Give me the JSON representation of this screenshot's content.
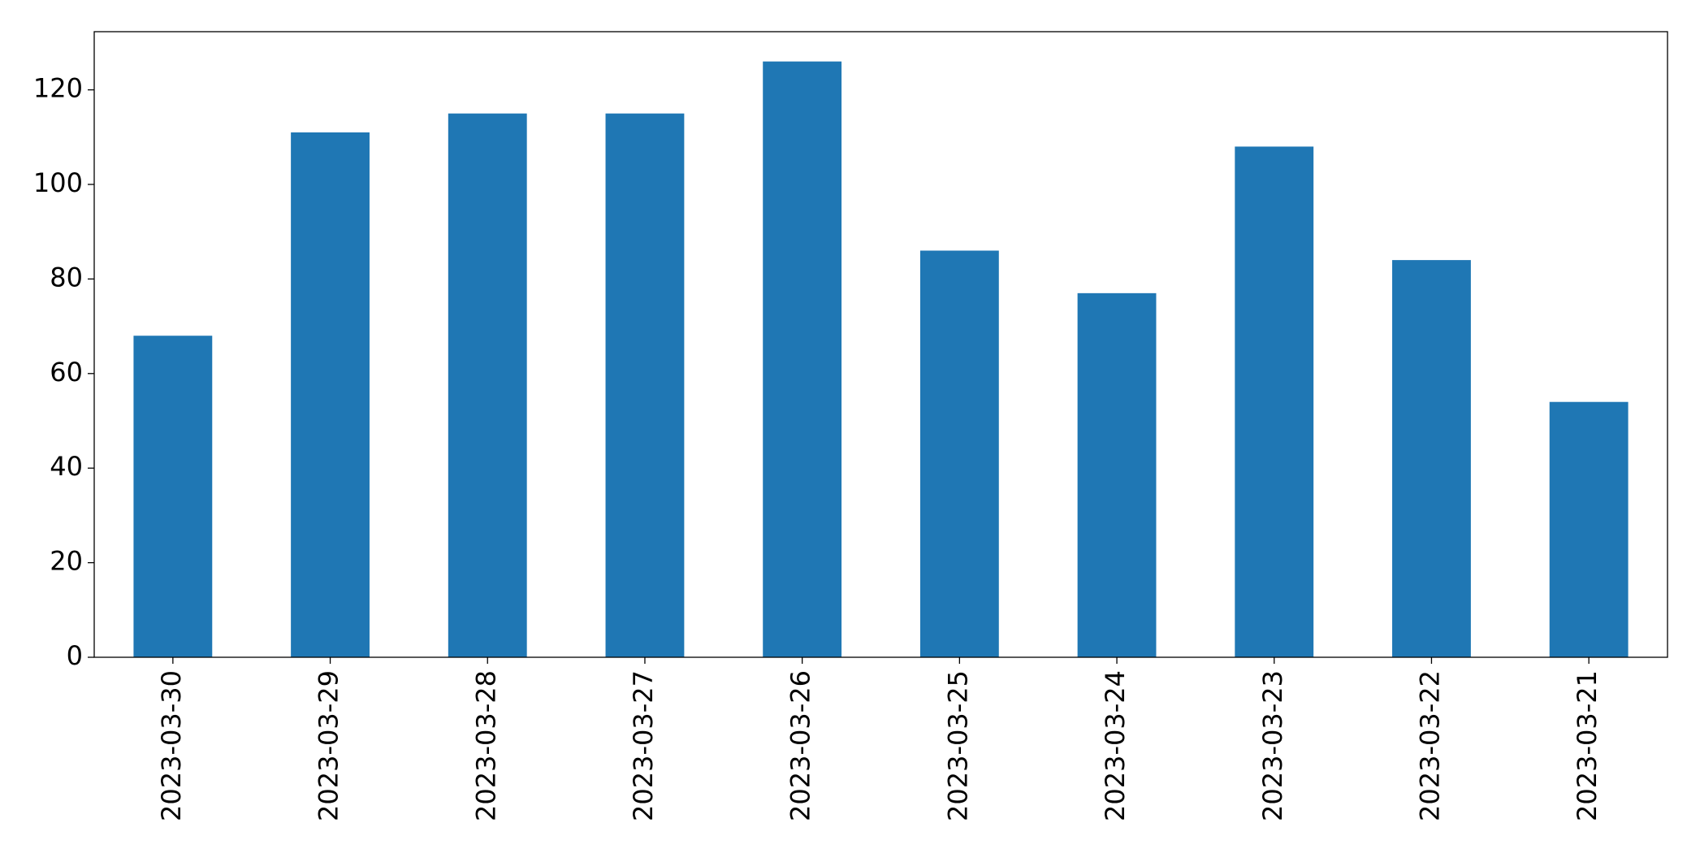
{
  "chart_data": {
    "type": "bar",
    "categories": [
      "2023-03-30",
      "2023-03-29",
      "2023-03-28",
      "2023-03-27",
      "2023-03-26",
      "2023-03-25",
      "2023-03-24",
      "2023-03-23",
      "2023-03-22",
      "2023-03-21"
    ],
    "values": [
      68,
      111,
      115,
      115,
      126,
      86,
      77,
      108,
      84,
      54
    ],
    "color": "#1f77b4",
    "ylim": [
      0,
      132.3
    ],
    "yticks": [
      0,
      20,
      40,
      60,
      80,
      100,
      120
    ],
    "grid": false
  }
}
